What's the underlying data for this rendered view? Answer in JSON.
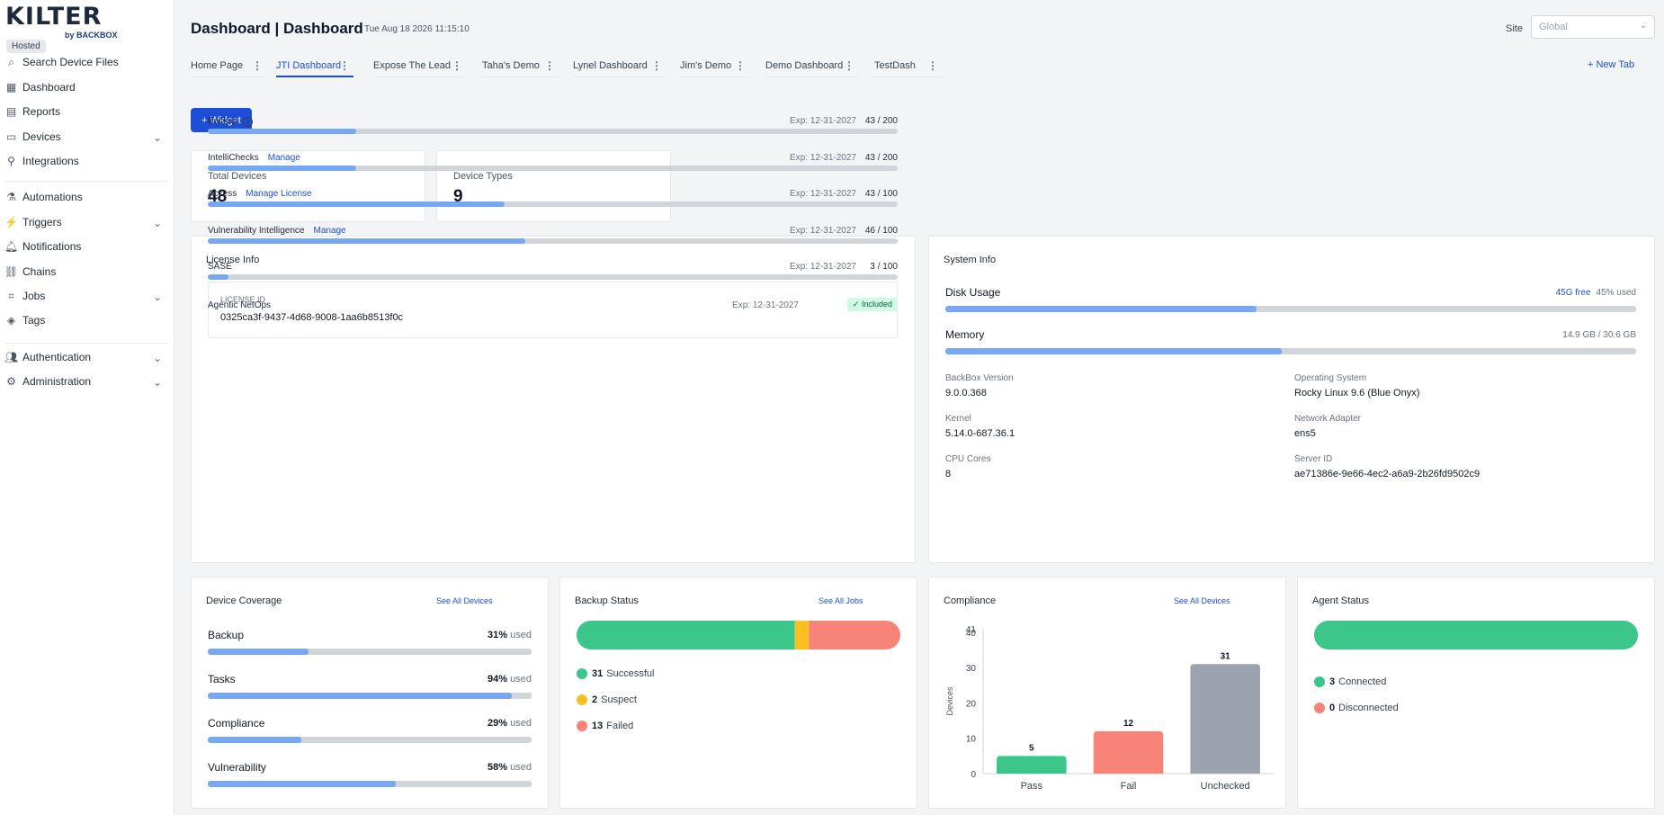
{
  "app": {
    "logo_text": "KILTER",
    "logo_sub": "by BACKBOX",
    "hosted_badge": "Hosted"
  },
  "sidebar": {
    "items": [
      {
        "label": "Search Device Files",
        "icon": "search-icon"
      },
      {
        "label": "Dashboard",
        "icon": "dashboard-icon"
      },
      {
        "label": "Reports",
        "icon": "reports-icon"
      },
      {
        "label": "Devices",
        "icon": "monitor-icon",
        "expandable": true
      },
      {
        "label": "Integrations",
        "icon": "plug-icon"
      },
      {
        "label": "Automations",
        "icon": "flask-icon"
      },
      {
        "label": "Triggers",
        "icon": "bolt-icon",
        "expandable": true
      },
      {
        "label": "Notifications",
        "icon": "bell-icon"
      },
      {
        "label": "Chains",
        "icon": "chains-icon"
      },
      {
        "label": "Jobs",
        "icon": "code-icon",
        "expandable": true
      },
      {
        "label": "Tags",
        "icon": "tag-icon"
      },
      {
        "label": "Authentication",
        "icon": "users-icon",
        "expandable": true
      },
      {
        "label": "Administration",
        "icon": "gear-icon",
        "expandable": true
      }
    ]
  },
  "header": {
    "title": "Dashboard | Dashboard",
    "timestamp": "Tue Aug 18 2026 11:15:10",
    "site_label": "Site",
    "site_value": "Global"
  },
  "tabs": [
    "Home Page",
    "JTI Dashboard",
    "Expose The Lead",
    "Taha's Demo",
    "Lynel Dashboard",
    "Jim's Demo",
    "Demo Dashboard",
    "TestDash"
  ],
  "active_tab": "JTI Dashboard",
  "new_tab_label": "+ New Tab",
  "widget_button": "+ Widget",
  "stats": [
    {
      "label": "Total Devices",
      "value": "48"
    },
    {
      "label": "Device Types",
      "value": "9"
    }
  ],
  "license": {
    "title": "License Info",
    "id_label": "LICENSE ID",
    "id_value": "0325ca3f-9437-4d68-9008-1aa6b8513f0c",
    "rows": [
      {
        "name": "Backup",
        "link": "",
        "info": true,
        "exp": "Exp: 12-31-2027",
        "count": "43 / 200",
        "used": 43,
        "total": 200
      },
      {
        "name": "IntelliChecks",
        "link": "Manage",
        "exp": "Exp: 12-31-2027",
        "count": "43 / 200",
        "used": 43,
        "total": 200
      },
      {
        "name": "Access",
        "link": "Manage License",
        "exp": "Exp: 12-31-2027",
        "count": "43 / 100",
        "used": 43,
        "total": 100
      },
      {
        "name": "Vulnerability Intelligence",
        "link": "Manage",
        "exp": "Exp: 12-31-2027",
        "count": "46 / 100",
        "used": 46,
        "total": 100
      },
      {
        "name": "SASE",
        "link": "",
        "exp": "Exp: 12-31-2027",
        "count": "3 / 100",
        "used": 3,
        "total": 100
      },
      {
        "name": "Agentic NetOps",
        "link": "",
        "exp": "Exp: 12-31-2027",
        "badge": "✓ Included"
      }
    ]
  },
  "system": {
    "title": "System Info",
    "disk": {
      "label": "Disk Usage",
      "free": "45G free",
      "used_text": "45% used",
      "percent": 45
    },
    "memory": {
      "label": "Memory",
      "text": "14.9 GB / 30.6 GB",
      "percent": 48.7
    },
    "fields": [
      {
        "key": "BackBox Version",
        "value": "9.0.0.368"
      },
      {
        "key": "Operating System",
        "value": "Rocky Linux 9.6 (Blue Onyx)"
      },
      {
        "key": "Kernel",
        "value": "5.14.0-687.36.1"
      },
      {
        "key": "Network Adapter",
        "value": "ens5"
      },
      {
        "key": "CPU Cores",
        "value": "8"
      },
      {
        "key": "Server ID",
        "value": "ae71386e-9e66-4ec2-a6a9-2b26fd9502c9"
      }
    ]
  },
  "coverage": {
    "title": "Device Coverage",
    "link": "See All Devices",
    "used_word": "used",
    "rows": [
      {
        "name": "Backup",
        "pct": "31%",
        "value": 31
      },
      {
        "name": "Tasks",
        "pct": "94%",
        "value": 94
      },
      {
        "name": "Compliance",
        "pct": "29%",
        "value": 29
      },
      {
        "name": "Vulnerability",
        "pct": "58%",
        "value": 58
      }
    ]
  },
  "backup_status": {
    "title": "Backup Status",
    "link": "See All Jobs",
    "segments": [
      {
        "label": "Successful",
        "count": "31",
        "value": 31,
        "color": "#3cc68a"
      },
      {
        "label": "Suspect",
        "count": "2",
        "value": 2,
        "color": "#fbbf24"
      },
      {
        "label": "Failed",
        "count": "13",
        "value": 13,
        "color": "#f88379"
      }
    ]
  },
  "compliance": {
    "title": "Compliance",
    "link": "See All Devices",
    "chart_data": {
      "type": "bar",
      "categories": [
        "Pass",
        "Fail",
        "Unchecked"
      ],
      "values": [
        5,
        12,
        31
      ],
      "colors": [
        "#3cc68a",
        "#f88379",
        "#9ca3af"
      ],
      "ylabel": "Devices",
      "yticks": [
        "0",
        "10",
        "20",
        "30",
        "40",
        "41"
      ],
      "ylim": [
        0,
        41
      ]
    }
  },
  "agent": {
    "title": "Agent Status",
    "segments": [
      {
        "label": "Connected",
        "count": "3",
        "value": 3,
        "color": "#3cc68a"
      },
      {
        "label": "Disconnected",
        "count": "0",
        "value": 0,
        "color": "#f88379"
      }
    ]
  }
}
